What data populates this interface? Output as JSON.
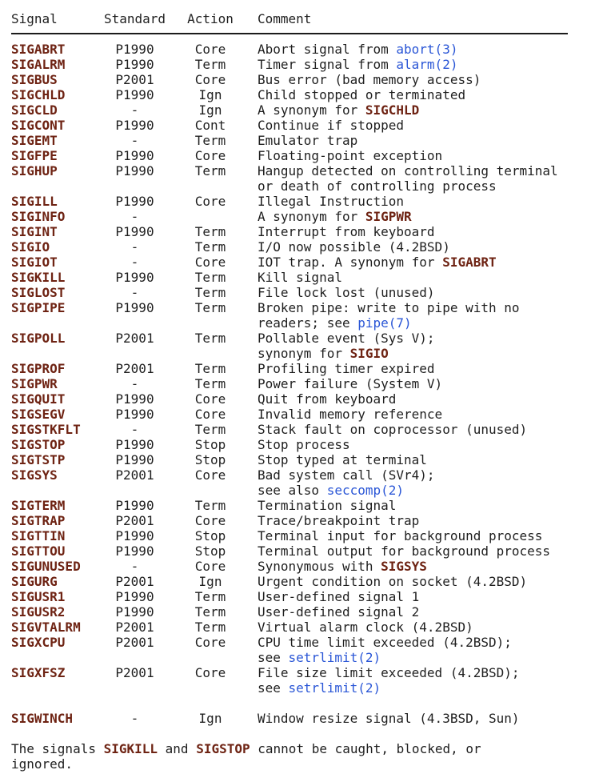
{
  "colors": {
    "text": "#1f1f1f",
    "signal_bold": "#6e2313",
    "link": "#2a56d6",
    "rule": "#1c1c1c",
    "background": "#ffffff"
  },
  "table": {
    "headers": [
      "Signal",
      "Standard",
      "Action",
      "Comment"
    ],
    "rows": [
      {
        "signal": "SIGABRT",
        "standard": "P1990",
        "action": "Core",
        "comment": [
          {
            "t": "Abort signal from "
          },
          {
            "t": "abort(3)",
            "s": "link"
          }
        ]
      },
      {
        "signal": "SIGALRM",
        "standard": "P1990",
        "action": "Term",
        "comment": [
          {
            "t": "Timer signal from "
          },
          {
            "t": "alarm(2)",
            "s": "link"
          }
        ]
      },
      {
        "signal": "SIGBUS",
        "standard": "P2001",
        "action": "Core",
        "comment": [
          {
            "t": "Bus error (bad memory access)"
          }
        ]
      },
      {
        "signal": "SIGCHLD",
        "standard": "P1990",
        "action": "Ign",
        "comment": [
          {
            "t": "Child stopped or terminated"
          }
        ]
      },
      {
        "signal": "SIGCLD",
        "standard": "-",
        "action": "Ign",
        "comment": [
          {
            "t": "A synonym for "
          },
          {
            "t": "SIGCHLD",
            "s": "bold"
          }
        ]
      },
      {
        "signal": "SIGCONT",
        "standard": "P1990",
        "action": "Cont",
        "comment": [
          {
            "t": "Continue if stopped"
          }
        ]
      },
      {
        "signal": "SIGEMT",
        "standard": "-",
        "action": "Term",
        "comment": [
          {
            "t": "Emulator trap"
          }
        ]
      },
      {
        "signal": "SIGFPE",
        "standard": "P1990",
        "action": "Core",
        "comment": [
          {
            "t": "Floating-point exception"
          }
        ]
      },
      {
        "signal": "SIGHUP",
        "standard": "P1990",
        "action": "Term",
        "comment": [
          {
            "t": "Hangup detected on controlling terminal\nor death of controlling process"
          }
        ]
      },
      {
        "signal": "SIGILL",
        "standard": "P1990",
        "action": "Core",
        "comment": [
          {
            "t": "Illegal Instruction"
          }
        ]
      },
      {
        "signal": "SIGINFO",
        "standard": "-",
        "action": "",
        "comment": [
          {
            "t": "A synonym for "
          },
          {
            "t": "SIGPWR",
            "s": "bold"
          }
        ]
      },
      {
        "signal": "SIGINT",
        "standard": "P1990",
        "action": "Term",
        "comment": [
          {
            "t": "Interrupt from keyboard"
          }
        ]
      },
      {
        "signal": "SIGIO",
        "standard": "-",
        "action": "Term",
        "comment": [
          {
            "t": "I/O now possible (4.2BSD)"
          }
        ]
      },
      {
        "signal": "SIGIOT",
        "standard": "-",
        "action": "Core",
        "comment": [
          {
            "t": "IOT trap. A synonym for "
          },
          {
            "t": "SIGABRT",
            "s": "bold"
          }
        ]
      },
      {
        "signal": "SIGKILL",
        "standard": "P1990",
        "action": "Term",
        "comment": [
          {
            "t": "Kill signal"
          }
        ]
      },
      {
        "signal": "SIGLOST",
        "standard": "-",
        "action": "Term",
        "comment": [
          {
            "t": "File lock lost (unused)"
          }
        ]
      },
      {
        "signal": "SIGPIPE",
        "standard": "P1990",
        "action": "Term",
        "comment": [
          {
            "t": "Broken pipe: write to pipe with no\nreaders; see "
          },
          {
            "t": "pipe(7)",
            "s": "link"
          }
        ]
      },
      {
        "signal": "SIGPOLL",
        "standard": "P2001",
        "action": "Term",
        "comment": [
          {
            "t": "Pollable event (Sys V);\nsynonym for "
          },
          {
            "t": "SIGIO",
            "s": "bold"
          }
        ]
      },
      {
        "signal": "SIGPROF",
        "standard": "P2001",
        "action": "Term",
        "comment": [
          {
            "t": "Profiling timer expired"
          }
        ]
      },
      {
        "signal": "SIGPWR",
        "standard": "-",
        "action": "Term",
        "comment": [
          {
            "t": "Power failure (System V)"
          }
        ]
      },
      {
        "signal": "SIGQUIT",
        "standard": "P1990",
        "action": "Core",
        "comment": [
          {
            "t": "Quit from keyboard"
          }
        ]
      },
      {
        "signal": "SIGSEGV",
        "standard": "P1990",
        "action": "Core",
        "comment": [
          {
            "t": "Invalid memory reference"
          }
        ]
      },
      {
        "signal": "SIGSTKFLT",
        "standard": "-",
        "action": "Term",
        "comment": [
          {
            "t": "Stack fault on coprocessor (unused)"
          }
        ]
      },
      {
        "signal": "SIGSTOP",
        "standard": "P1990",
        "action": "Stop",
        "comment": [
          {
            "t": "Stop process"
          }
        ]
      },
      {
        "signal": "SIGTSTP",
        "standard": "P1990",
        "action": "Stop",
        "comment": [
          {
            "t": "Stop typed at terminal"
          }
        ]
      },
      {
        "signal": "SIGSYS",
        "standard": "P2001",
        "action": "Core",
        "comment": [
          {
            "t": "Bad system call (SVr4);\nsee also "
          },
          {
            "t": "seccomp(2)",
            "s": "link"
          }
        ]
      },
      {
        "signal": "SIGTERM",
        "standard": "P1990",
        "action": "Term",
        "comment": [
          {
            "t": "Termination signal"
          }
        ]
      },
      {
        "signal": "SIGTRAP",
        "standard": "P2001",
        "action": "Core",
        "comment": [
          {
            "t": "Trace/breakpoint trap"
          }
        ]
      },
      {
        "signal": "SIGTTIN",
        "standard": "P1990",
        "action": "Stop",
        "comment": [
          {
            "t": "Terminal input for background process"
          }
        ]
      },
      {
        "signal": "SIGTTOU",
        "standard": "P1990",
        "action": "Stop",
        "comment": [
          {
            "t": "Terminal output for background process"
          }
        ]
      },
      {
        "signal": "SIGUNUSED",
        "standard": "-",
        "action": "Core",
        "comment": [
          {
            "t": "Synonymous with "
          },
          {
            "t": "SIGSYS",
            "s": "bold"
          }
        ]
      },
      {
        "signal": "SIGURG",
        "standard": "P2001",
        "action": "Ign",
        "comment": [
          {
            "t": "Urgent condition on socket (4.2BSD)"
          }
        ]
      },
      {
        "signal": "SIGUSR1",
        "standard": "P1990",
        "action": "Term",
        "comment": [
          {
            "t": "User-defined signal 1"
          }
        ]
      },
      {
        "signal": "SIGUSR2",
        "standard": "P1990",
        "action": "Term",
        "comment": [
          {
            "t": "User-defined signal 2"
          }
        ]
      },
      {
        "signal": "SIGVTALRM",
        "standard": "P2001",
        "action": "Term",
        "comment": [
          {
            "t": "Virtual alarm clock (4.2BSD)"
          }
        ]
      },
      {
        "signal": "SIGXCPU",
        "standard": "P2001",
        "action": "Core",
        "comment": [
          {
            "t": "CPU time limit exceeded (4.2BSD);\nsee "
          },
          {
            "t": "setrlimit(2)",
            "s": "link"
          }
        ]
      },
      {
        "signal": "SIGXFSZ",
        "standard": "P2001",
        "action": "Core",
        "comment": [
          {
            "t": "File size limit exceeded (4.2BSD);\nsee "
          },
          {
            "t": "setrlimit(2)",
            "s": "link"
          }
        ]
      },
      {
        "signal": "SIGWINCH",
        "standard": "-",
        "action": "Ign",
        "comment": [
          {
            "t": "Window resize signal (4.3BSD, Sun)"
          }
        ],
        "gap_before": true
      }
    ]
  },
  "footer": {
    "segments": [
      {
        "t": "The signals "
      },
      {
        "t": "SIGKILL",
        "s": "bold"
      },
      {
        "t": " and "
      },
      {
        "t": "SIGSTOP",
        "s": "bold"
      },
      {
        "t": " cannot be caught, blocked, or\nignored."
      }
    ]
  }
}
